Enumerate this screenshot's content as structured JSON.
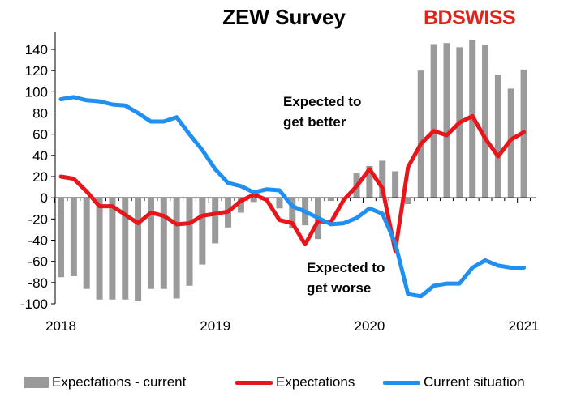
{
  "title": "ZEW Survey",
  "logo": {
    "text_bd": "BD",
    "text_swiss": "SWISS",
    "has_cross": true,
    "color": "#e2231a"
  },
  "annotations": {
    "better_line1": "Expected to",
    "better_line2": "get better",
    "worse_line1": "Expected to",
    "worse_line2": "get worse"
  },
  "legend": {
    "bars": "Expectations - current",
    "red": "Expectations",
    "blue": "Current situation"
  },
  "colors": {
    "bars": "#9a9a9a",
    "red": "#e8151b",
    "blue": "#1f8ff2"
  },
  "chart_data": {
    "type": "bar+line",
    "title": "ZEW Survey",
    "xlabel": "",
    "ylabel": "",
    "ylim": [
      -100,
      150
    ],
    "yticks": [
      -100,
      -80,
      -60,
      -40,
      -20,
      0,
      20,
      40,
      60,
      80,
      100,
      120,
      140
    ],
    "xtick_labels": [
      "2018",
      "2019",
      "2020",
      "2021"
    ],
    "x_start": "2018-01",
    "legend_position": "bottom",
    "grid": false,
    "series": [
      {
        "name": "Expectations - current",
        "kind": "bar",
        "values": [
          -75,
          -74,
          -86,
          -96,
          -96,
          -96,
          -97,
          -86,
          -86,
          -95,
          -83,
          -63,
          -43,
          -28,
          -14,
          -4,
          -1,
          -10,
          -29,
          -26,
          -39,
          -3,
          -1,
          23,
          30,
          35,
          25,
          -6,
          120,
          145,
          146,
          142,
          149,
          144,
          116,
          103,
          121
        ]
      },
      {
        "name": "Expectations",
        "kind": "line",
        "values": [
          20,
          18,
          6,
          -8,
          -8,
          -16,
          -24,
          -14,
          -17,
          -25,
          -24,
          -17,
          -15,
          -13,
          -3,
          3,
          -2,
          -21,
          -24,
          -44,
          -22,
          -23,
          -2,
          11,
          27,
          9,
          -50,
          29,
          51,
          63,
          59,
          71,
          77,
          56,
          39,
          55,
          62
        ]
      },
      {
        "name": "Current situation",
        "kind": "line",
        "values": [
          93,
          95,
          92,
          91,
          88,
          87,
          80,
          72,
          72,
          76,
          60,
          45,
          27,
          14,
          11,
          5,
          8,
          7,
          -8,
          -13,
          -19,
          -25,
          -24,
          -19,
          -10,
          -15,
          -43,
          -91,
          -93,
          -83,
          -81,
          -81,
          -66,
          -59,
          -64,
          -66,
          -66
        ]
      }
    ]
  }
}
